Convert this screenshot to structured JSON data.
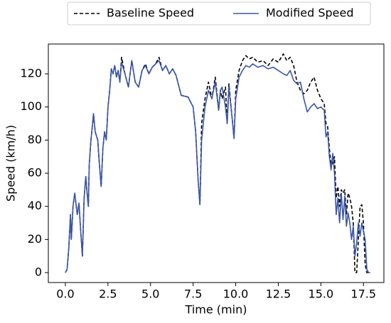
{
  "chart_data": {
    "type": "line",
    "xlabel": "Time (min)",
    "ylabel": "Speed (km/h)",
    "x": [
      0,
      0.1,
      0.2,
      0.3,
      0.35,
      0.45,
      0.55,
      0.7,
      0.8,
      0.9,
      1.0,
      1.1,
      1.2,
      1.3,
      1.35,
      1.4,
      1.5,
      1.6,
      1.65,
      1.75,
      1.9,
      2.0,
      2.1,
      2.2,
      2.3,
      2.4,
      2.5,
      2.6,
      2.7,
      2.8,
      2.9,
      3.0,
      3.1,
      3.2,
      3.3,
      3.5,
      3.7,
      3.9,
      4.1,
      4.3,
      4.5,
      4.7,
      4.9,
      5.1,
      5.3,
      5.5,
      5.7,
      5.9,
      6.1,
      6.3,
      6.5,
      6.8,
      7.2,
      7.5,
      7.65,
      7.8,
      7.9,
      8.0,
      8.2,
      8.4,
      8.6,
      8.8,
      9.0,
      9.1,
      9.2,
      9.4,
      9.5,
      9.6,
      9.8,
      9.9,
      10.0,
      10.2,
      10.4,
      10.6,
      10.8,
      11.0,
      11.3,
      11.6,
      11.9,
      12.2,
      12.5,
      12.8,
      13.0,
      13.2,
      13.4,
      13.6,
      13.8,
      14.0,
      14.2,
      14.4,
      14.6,
      14.8,
      15.0,
      15.2,
      15.3,
      15.4,
      15.5,
      15.6,
      15.7,
      15.8,
      15.9,
      16.0,
      16.1,
      16.2,
      16.3,
      16.4,
      16.5,
      16.6,
      16.7,
      16.8,
      16.9,
      17.0,
      17.1,
      17.2,
      17.3,
      17.4,
      17.5,
      17.6,
      17.7,
      17.8,
      17.9
    ],
    "series": [
      {
        "name": "Baseline Speed",
        "color": "#000000",
        "dash": true,
        "values": [
          0,
          2,
          15,
          35,
          20,
          40,
          48,
          35,
          42,
          25,
          10,
          45,
          58,
          45,
          40,
          65,
          80,
          90,
          96,
          85,
          80,
          65,
          52,
          75,
          85,
          80,
          100,
          110,
          123,
          120,
          125,
          118,
          122,
          115,
          130,
          120,
          112,
          128,
          115,
          112,
          122,
          126,
          120,
          124,
          126,
          130,
          122,
          125,
          120,
          123,
          119,
          107,
          106,
          100,
          85,
          55,
          41,
          90,
          105,
          115,
          105,
          118,
          98,
          110,
          105,
          112,
          90,
          114,
          92,
          81,
          110,
          122,
          128,
          131,
          129,
          130,
          127,
          128,
          125,
          129,
          127,
          132,
          128,
          130,
          125,
          115,
          110,
          108,
          110,
          115,
          118,
          110,
          105,
          102,
          90,
          88,
          75,
          65,
          66,
          70,
          45,
          52,
          40,
          50,
          48,
          50,
          35,
          48,
          45,
          40,
          30,
          0,
          0,
          20,
          40,
          41,
          30,
          5,
          0,
          0,
          0
        ]
      },
      {
        "name": "Modified Speed",
        "color": "#3a56a8",
        "dash": false,
        "values": [
          0,
          2,
          15,
          35,
          20,
          40,
          48,
          35,
          42,
          25,
          10,
          45,
          58,
          45,
          40,
          65,
          80,
          90,
          96,
          85,
          80,
          65,
          52,
          75,
          85,
          80,
          100,
          110,
          123,
          120,
          125,
          118,
          122,
          115,
          127,
          120,
          112,
          128,
          115,
          112,
          122,
          125,
          120,
          124,
          126,
          128,
          122,
          125,
          120,
          123,
          119,
          107,
          106,
          100,
          85,
          55,
          41,
          80,
          100,
          110,
          105,
          115,
          98,
          110,
          112,
          100,
          90,
          112,
          92,
          81,
          105,
          118,
          122,
          125,
          124,
          126,
          124,
          125,
          123,
          124,
          122,
          120,
          119,
          122,
          116,
          114,
          115,
          105,
          97,
          100,
          102,
          99,
          100,
          98,
          82,
          85,
          70,
          62,
          72,
          60,
          35,
          45,
          30,
          48,
          32,
          46,
          28,
          36,
          30,
          20,
          28,
          10,
          18,
          30,
          22,
          30,
          25,
          20,
          2,
          0,
          0
        ]
      }
    ],
    "xlim": [
      -1,
      18.7
    ],
    "ylim": [
      -6,
      138
    ],
    "xticks": [
      {
        "value": 0,
        "label": "0.0"
      },
      {
        "value": 2.5,
        "label": "2.5"
      },
      {
        "value": 5,
        "label": "5.0"
      },
      {
        "value": 7.5,
        "label": "7.5"
      },
      {
        "value": 10,
        "label": "10.0"
      },
      {
        "value": 12.5,
        "label": "12.5"
      },
      {
        "value": 15,
        "label": "15.0"
      },
      {
        "value": 17.5,
        "label": "17.5"
      }
    ],
    "yticks": [
      0,
      20,
      40,
      60,
      80,
      100,
      120
    ],
    "legend": "top",
    "grid": false
  }
}
